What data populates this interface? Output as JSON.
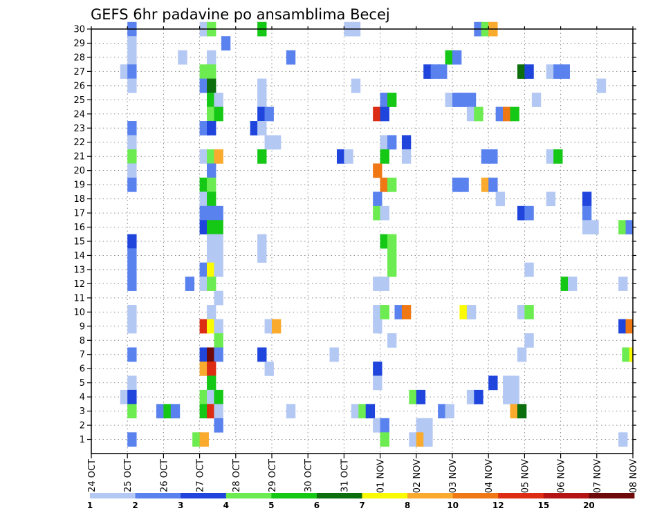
{
  "chart_data": {
    "type": "heatmap",
    "title": "GEFS 6hr padavine po ansamblima Becej",
    "xlabel": "",
    "ylabel": "",
    "x_ticks": [
      "24 OCT",
      "25 OCT",
      "26 OCT",
      "27 OCT",
      "28 OCT",
      "29 OCT",
      "30 OCT",
      "31 OCT",
      "01 NOV",
      "02 NOV",
      "03 NOV",
      "04 NOV",
      "05 NOV",
      "06 NOV",
      "07 NOV",
      "08 NOV"
    ],
    "xlim": [
      0,
      15
    ],
    "x_unit": "days from 24 OCT",
    "y_ticks": [
      "1",
      "2",
      "3",
      "4",
      "5",
      "6",
      "7",
      "8",
      "9",
      "10",
      "11",
      "12",
      "13",
      "14",
      "15",
      "16",
      "17",
      "18",
      "19",
      "20",
      "21",
      "22",
      "23",
      "24",
      "25",
      "26",
      "27",
      "28",
      "29",
      "30"
    ],
    "ylim": [
      0,
      30
    ],
    "grid": true,
    "colorbar": {
      "placement": "bottom",
      "labels": [
        "1",
        "2",
        "3",
        "4",
        "5",
        "6",
        "7",
        "8",
        "10",
        "12",
        "15",
        "20"
      ],
      "colors": [
        "#b4c8f4",
        "#5a82ee",
        "#1f45dc",
        "#6cec50",
        "#16c816",
        "#0c6e0c",
        "#fafa05",
        "#faaa2d",
        "#f07814",
        "#dc2d14",
        "#b41414",
        "#6e0a0a"
      ]
    },
    "cells": [
      [
        1.0,
        30,
        1
      ],
      [
        3.0,
        30,
        0
      ],
      [
        3.2,
        30,
        3
      ],
      [
        4.6,
        30,
        4
      ],
      [
        7.0,
        30,
        0
      ],
      [
        7.2,
        30,
        0
      ],
      [
        10.6,
        30,
        1
      ],
      [
        10.8,
        30,
        3
      ],
      [
        11.0,
        30,
        7
      ],
      [
        1.0,
        29,
        0
      ],
      [
        3.6,
        29,
        1
      ],
      [
        1.0,
        28,
        0
      ],
      [
        2.4,
        28,
        0
      ],
      [
        3.2,
        28,
        0
      ],
      [
        5.4,
        28,
        1
      ],
      [
        9.8,
        28,
        4
      ],
      [
        10.0,
        28,
        1
      ],
      [
        0.8,
        27,
        0
      ],
      [
        1.0,
        27,
        1
      ],
      [
        3.0,
        27,
        3
      ],
      [
        3.2,
        27,
        3
      ],
      [
        9.2,
        27,
        2
      ],
      [
        9.4,
        27,
        1
      ],
      [
        9.6,
        27,
        1
      ],
      [
        11.8,
        27,
        5
      ],
      [
        12.0,
        27,
        2
      ],
      [
        12.6,
        27,
        0
      ],
      [
        12.8,
        27,
        1
      ],
      [
        13.0,
        27,
        1
      ],
      [
        1.0,
        26,
        0
      ],
      [
        3.0,
        26,
        1
      ],
      [
        3.2,
        26,
        5
      ],
      [
        4.6,
        26,
        0
      ],
      [
        7.2,
        26,
        0
      ],
      [
        14.0,
        26,
        0
      ],
      [
        3.2,
        25,
        4
      ],
      [
        3.4,
        25,
        0
      ],
      [
        4.6,
        25,
        0
      ],
      [
        8.0,
        25,
        1
      ],
      [
        8.2,
        25,
        4
      ],
      [
        9.8,
        25,
        0
      ],
      [
        10.0,
        25,
        1
      ],
      [
        10.2,
        25,
        1
      ],
      [
        10.4,
        25,
        1
      ],
      [
        12.2,
        25,
        0
      ],
      [
        3.2,
        24,
        3
      ],
      [
        3.4,
        24,
        4
      ],
      [
        4.6,
        24,
        2
      ],
      [
        4.8,
        24,
        1
      ],
      [
        7.8,
        24,
        9
      ],
      [
        8.0,
        24,
        2
      ],
      [
        10.4,
        24,
        0
      ],
      [
        10.6,
        24,
        3
      ],
      [
        11.2,
        24,
        1
      ],
      [
        11.4,
        24,
        8
      ],
      [
        11.6,
        24,
        4
      ],
      [
        1.0,
        23,
        1
      ],
      [
        3.0,
        23,
        1
      ],
      [
        3.2,
        23,
        2
      ],
      [
        4.4,
        23,
        2
      ],
      [
        4.6,
        23,
        0
      ],
      [
        1.0,
        22,
        0
      ],
      [
        4.8,
        22,
        0
      ],
      [
        5.0,
        22,
        0
      ],
      [
        8.0,
        22,
        0
      ],
      [
        8.2,
        22,
        1
      ],
      [
        8.6,
        22,
        2
      ],
      [
        1.0,
        21,
        3
      ],
      [
        3.0,
        21,
        0
      ],
      [
        3.2,
        21,
        3
      ],
      [
        3.4,
        21,
        7
      ],
      [
        4.6,
        21,
        4
      ],
      [
        6.8,
        21,
        2
      ],
      [
        7.0,
        21,
        0
      ],
      [
        8.0,
        21,
        4
      ],
      [
        8.6,
        21,
        0
      ],
      [
        10.8,
        21,
        1
      ],
      [
        11.0,
        21,
        1
      ],
      [
        12.6,
        21,
        0
      ],
      [
        12.8,
        21,
        4
      ],
      [
        1.0,
        20,
        0
      ],
      [
        3.2,
        20,
        1
      ],
      [
        7.8,
        20,
        8
      ],
      [
        1.0,
        19,
        1
      ],
      [
        3.0,
        19,
        4
      ],
      [
        3.2,
        19,
        3
      ],
      [
        8.0,
        19,
        8
      ],
      [
        8.2,
        19,
        3
      ],
      [
        10.0,
        19,
        1
      ],
      [
        10.2,
        19,
        1
      ],
      [
        10.8,
        19,
        7
      ],
      [
        11.0,
        19,
        1
      ],
      [
        3.0,
        18,
        0
      ],
      [
        3.2,
        18,
        4
      ],
      [
        7.8,
        18,
        1
      ],
      [
        11.2,
        18,
        0
      ],
      [
        12.6,
        18,
        0
      ],
      [
        13.6,
        18,
        2
      ],
      [
        3.0,
        17,
        1
      ],
      [
        3.2,
        17,
        1
      ],
      [
        3.4,
        17,
        1
      ],
      [
        7.8,
        17,
        3
      ],
      [
        8.0,
        17,
        0
      ],
      [
        11.8,
        17,
        2
      ],
      [
        12.0,
        17,
        1
      ],
      [
        13.6,
        17,
        1
      ],
      [
        3.0,
        16,
        2
      ],
      [
        3.2,
        16,
        4
      ],
      [
        3.4,
        16,
        4
      ],
      [
        13.6,
        16,
        0
      ],
      [
        13.8,
        16,
        0
      ],
      [
        14.6,
        16,
        3
      ],
      [
        14.8,
        16,
        1
      ],
      [
        1.0,
        15,
        2
      ],
      [
        3.2,
        15,
        0
      ],
      [
        3.4,
        15,
        0
      ],
      [
        4.6,
        15,
        0
      ],
      [
        8.0,
        15,
        4
      ],
      [
        8.2,
        15,
        3
      ],
      [
        1.0,
        14,
        1
      ],
      [
        3.2,
        14,
        0
      ],
      [
        3.4,
        14,
        0
      ],
      [
        4.6,
        14,
        0
      ],
      [
        8.2,
        14,
        3
      ],
      [
        1.0,
        13,
        1
      ],
      [
        3.0,
        13,
        1
      ],
      [
        3.2,
        13,
        6
      ],
      [
        3.4,
        13,
        0
      ],
      [
        8.2,
        13,
        3
      ],
      [
        12.0,
        13,
        0
      ],
      [
        1.0,
        12,
        1
      ],
      [
        2.6,
        12,
        1
      ],
      [
        3.0,
        12,
        0
      ],
      [
        3.2,
        12,
        3
      ],
      [
        7.8,
        12,
        0
      ],
      [
        8.0,
        12,
        0
      ],
      [
        13.0,
        12,
        4
      ],
      [
        13.2,
        12,
        0
      ],
      [
        14.6,
        12,
        0
      ],
      [
        3.4,
        11,
        0
      ],
      [
        1.0,
        10,
        0
      ],
      [
        3.2,
        10,
        0
      ],
      [
        7.8,
        10,
        0
      ],
      [
        8.0,
        10,
        3
      ],
      [
        8.4,
        10,
        1
      ],
      [
        8.6,
        10,
        8
      ],
      [
        10.2,
        10,
        6
      ],
      [
        10.4,
        10,
        0
      ],
      [
        11.8,
        10,
        0
      ],
      [
        12.0,
        10,
        3
      ],
      [
        1.0,
        9,
        0
      ],
      [
        3.0,
        9,
        9
      ],
      [
        3.2,
        9,
        6
      ],
      [
        3.4,
        9,
        0
      ],
      [
        4.8,
        9,
        0
      ],
      [
        5.0,
        9,
        7
      ],
      [
        7.8,
        9,
        0
      ],
      [
        14.6,
        9,
        2
      ],
      [
        14.8,
        9,
        8
      ],
      [
        15.0,
        9,
        8
      ],
      [
        3.4,
        8,
        3
      ],
      [
        8.2,
        8,
        0
      ],
      [
        12.0,
        8,
        0
      ],
      [
        1.0,
        7,
        1
      ],
      [
        3.0,
        7,
        2
      ],
      [
        3.2,
        7,
        11
      ],
      [
        3.4,
        7,
        1
      ],
      [
        4.6,
        7,
        2
      ],
      [
        6.6,
        7,
        0
      ],
      [
        11.8,
        7,
        0
      ],
      [
        14.7,
        7,
        3
      ],
      [
        14.9,
        7,
        6
      ],
      [
        3.0,
        6,
        7
      ],
      [
        3.2,
        6,
        9
      ],
      [
        4.8,
        6,
        0
      ],
      [
        7.8,
        6,
        2
      ],
      [
        1.0,
        5,
        0
      ],
      [
        3.2,
        5,
        4
      ],
      [
        7.8,
        5,
        0
      ],
      [
        11.0,
        5,
        2
      ],
      [
        11.4,
        5,
        0
      ],
      [
        11.6,
        5,
        0
      ],
      [
        0.8,
        4,
        0
      ],
      [
        1.0,
        4,
        2
      ],
      [
        3.0,
        4,
        3
      ],
      [
        3.2,
        4,
        0
      ],
      [
        3.4,
        4,
        4
      ],
      [
        8.8,
        4,
        3
      ],
      [
        9.0,
        4,
        2
      ],
      [
        10.4,
        4,
        0
      ],
      [
        10.6,
        4,
        2
      ],
      [
        11.4,
        4,
        0
      ],
      [
        11.6,
        4,
        0
      ],
      [
        1.0,
        3,
        3
      ],
      [
        1.8,
        3,
        1
      ],
      [
        2.0,
        3,
        4
      ],
      [
        2.2,
        3,
        1
      ],
      [
        3.0,
        3,
        4
      ],
      [
        3.2,
        3,
        9
      ],
      [
        3.4,
        3,
        0
      ],
      [
        5.4,
        3,
        0
      ],
      [
        7.2,
        3,
        0
      ],
      [
        7.4,
        3,
        3
      ],
      [
        7.6,
        3,
        2
      ],
      [
        9.6,
        3,
        1
      ],
      [
        9.8,
        3,
        0
      ],
      [
        11.6,
        3,
        7
      ],
      [
        11.8,
        3,
        5
      ],
      [
        3.4,
        2,
        1
      ],
      [
        7.8,
        2,
        0
      ],
      [
        8.0,
        2,
        1
      ],
      [
        9.0,
        2,
        0
      ],
      [
        9.2,
        2,
        0
      ],
      [
        1.0,
        1,
        1
      ],
      [
        2.8,
        1,
        3
      ],
      [
        3.0,
        1,
        7
      ],
      [
        8.0,
        1,
        3
      ],
      [
        8.8,
        1,
        0
      ],
      [
        9.0,
        1,
        7
      ],
      [
        9.2,
        1,
        0
      ],
      [
        14.6,
        1,
        0
      ]
    ]
  }
}
